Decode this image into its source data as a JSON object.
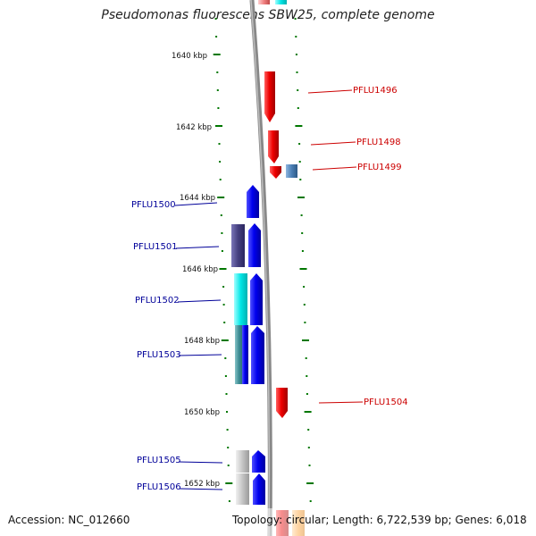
{
  "title": "Pseudomonas fluorescens SBW25, complete genome",
  "footer": {
    "accession": "Accession: NC_012660",
    "summary": "Topology: circular; Length: 6,722,539 bp; Genes: 6,018"
  },
  "position_ticks": [
    "1640 kbp",
    "1642 kbp",
    "1644 kbp",
    "1646 kbp",
    "1648 kbp",
    "1650 kbp",
    "1652 kbp"
  ],
  "gene_labels": {
    "forward": [
      "PFLU1496",
      "PFLU1498",
      "PFLU1499",
      "PFLU1504"
    ],
    "reverse": [
      "PFLU1500",
      "PFLU1501",
      "PFLU1502",
      "PFLU1503",
      "PFLU1505",
      "PFLU1506"
    ]
  },
  "colors": {
    "forward_strand_label": "#cc0000",
    "reverse_strand_label": "#000099",
    "forward_gene": "#ee0000",
    "reverse_gene": "#0000ee",
    "tick": "#007700",
    "backbone": "#888888"
  }
}
